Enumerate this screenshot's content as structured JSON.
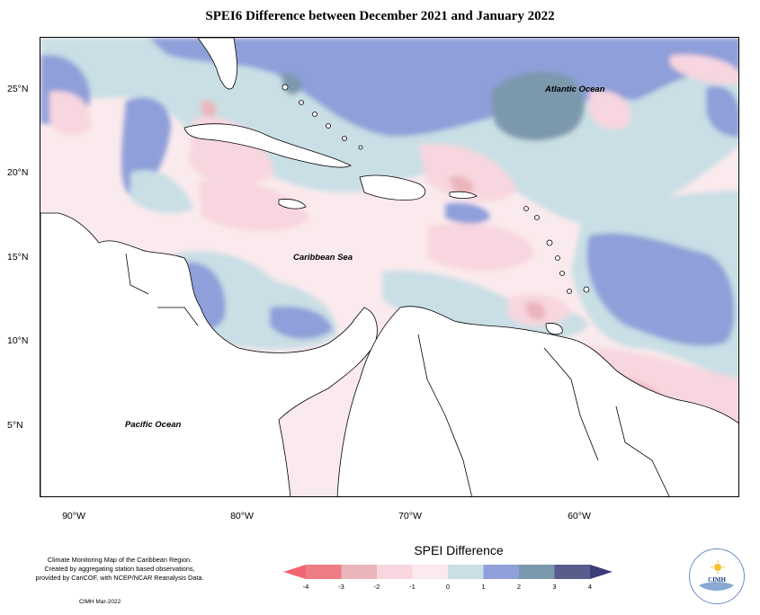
{
  "map": {
    "title": "SPEI6 Difference between December 2021 and January 2022",
    "lat_labels": [
      {
        "id": "lat-25",
        "text": "25°N"
      },
      {
        "id": "lat-20",
        "text": "20°N"
      },
      {
        "id": "lat-15",
        "text": "15°N"
      },
      {
        "id": "lat-10",
        "text": "10°N"
      },
      {
        "id": "lat-5",
        "text": "5°N"
      }
    ],
    "lon_labels": [
      {
        "id": "lon-90",
        "text": "90°W"
      },
      {
        "id": "lon-80",
        "text": "80°W"
      },
      {
        "id": "lon-70",
        "text": "70°W"
      },
      {
        "id": "lon-60",
        "text": "60°W"
      }
    ],
    "ocean_labels": {
      "atlantic": "Atlantic Ocean",
      "caribbean": "Caribbean Sea",
      "pacific": "Pacific Ocean"
    }
  },
  "legend": {
    "title": "SPEI Difference",
    "ticks": [
      "-4",
      "-3",
      "-2",
      "-1",
      "0",
      "1",
      "2",
      "3",
      "4"
    ],
    "colors": [
      "#ef7d88",
      "#eab5bb",
      "#f8d6df",
      "#fbeaed",
      "#c9dfe5",
      "#8f9fd9",
      "#7c98ad",
      "#575e8c"
    ],
    "low_arrow_color": "#f36570",
    "high_arrow_color": "#3b3c7a"
  },
  "credits": {
    "lines": [
      "Climate Monitoring Map of the Caribbean Region.",
      "Created by aggregating station based observations,",
      "provided by CariCOF, with NCEP/NCAR Reanalysis Data."
    ],
    "date": "CIMH Mar-2022"
  },
  "logo": {
    "name": "CIMH"
  }
}
